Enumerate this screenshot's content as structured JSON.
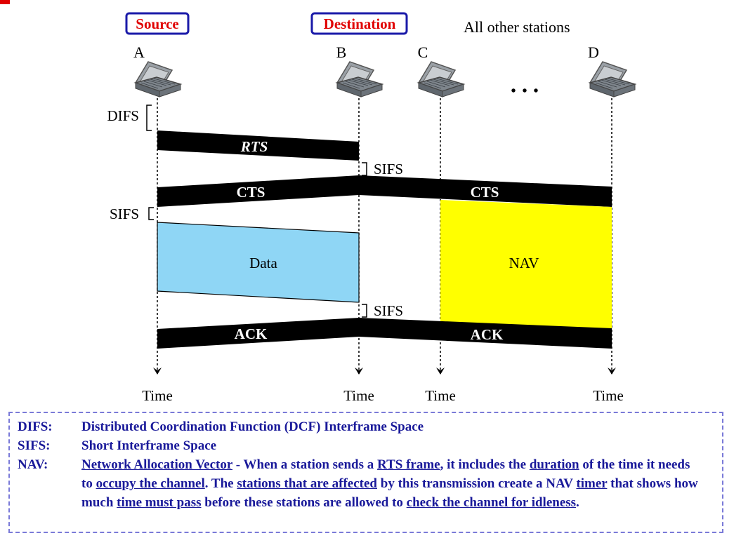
{
  "roles": {
    "source": "Source",
    "destination": "Destination",
    "others": "All other stations"
  },
  "stations": [
    {
      "id": "A"
    },
    {
      "id": "B"
    },
    {
      "id": "C"
    },
    {
      "id": "D"
    }
  ],
  "ellipsis": "• • •",
  "time_label": "Time",
  "intervals": {
    "difs": "DIFS",
    "sifs": "SIFS"
  },
  "frames": {
    "rts": "RTS",
    "cts": "CTS",
    "data": "Data",
    "nav": "NAV",
    "ack": "ACK"
  },
  "colors": {
    "frame": "#000000",
    "data": "#8fd6f5",
    "nav": "#ffff00",
    "box_border": "#1a1aa8",
    "box_text": "#e00000",
    "legend_text": "#1a1a9a"
  },
  "legend": [
    {
      "term": "DIFS:",
      "definition": "Distributed Coordination Function (DCF) Interframe Space"
    },
    {
      "term": "SIFS:",
      "definition": "Short Interframe Space"
    },
    {
      "term": "NAV:",
      "parts": [
        {
          "t": "Network Allocation Vector",
          "u": true
        },
        {
          "t": " - When a station sends a ",
          "u": false
        },
        {
          "t": "RTS frame",
          "u": true
        },
        {
          "t": ", it includes the ",
          "u": false
        },
        {
          "t": "duration",
          "u": true
        },
        {
          "t": " of the time it needs to ",
          "u": false
        },
        {
          "t": "occupy the channel",
          "u": true
        },
        {
          "t": ".  The ",
          "u": false
        },
        {
          "t": "stations that are affected",
          "u": true
        },
        {
          "t": " by this transmission create a NAV ",
          "u": false
        },
        {
          "t": "timer",
          "u": true
        },
        {
          "t": " that shows how much ",
          "u": false
        },
        {
          "t": "time must pass",
          "u": true
        },
        {
          "t": " before these stations are allowed to ",
          "u": false
        },
        {
          "t": "check the channel for idleness",
          "u": true
        },
        {
          "t": ".",
          "u": false
        }
      ]
    }
  ]
}
